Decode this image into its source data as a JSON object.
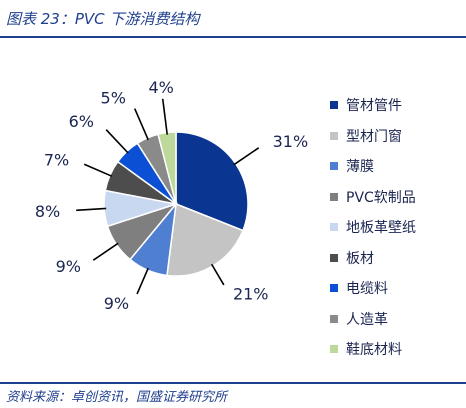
{
  "header": {
    "title": "图表 23：PVC 下游消费结构"
  },
  "footer": {
    "source": "资料来源：卓创资讯，国盛证券研究所"
  },
  "chart_data": {
    "type": "pie",
    "title": "",
    "categories": [
      "管材管件",
      "型材门窗",
      "薄膜",
      "PVC软制品",
      "地板革壁纸",
      "板材",
      "电缆料",
      "人造革",
      "鞋底材料"
    ],
    "values": [
      31,
      21,
      9,
      9,
      8,
      7,
      6,
      5,
      4
    ],
    "labels": [
      "31%",
      "21%",
      "9%",
      "9%",
      "8%",
      "7%",
      "6%",
      "5%",
      "4%"
    ],
    "colors": [
      "#0a3590",
      "#c4c4c4",
      "#4f7fd1",
      "#7f7f7f",
      "#c7d8f0",
      "#4d4d4d",
      "#0b4fd4",
      "#8a8a8a",
      "#bcd89b"
    ],
    "legend_position": "right"
  }
}
